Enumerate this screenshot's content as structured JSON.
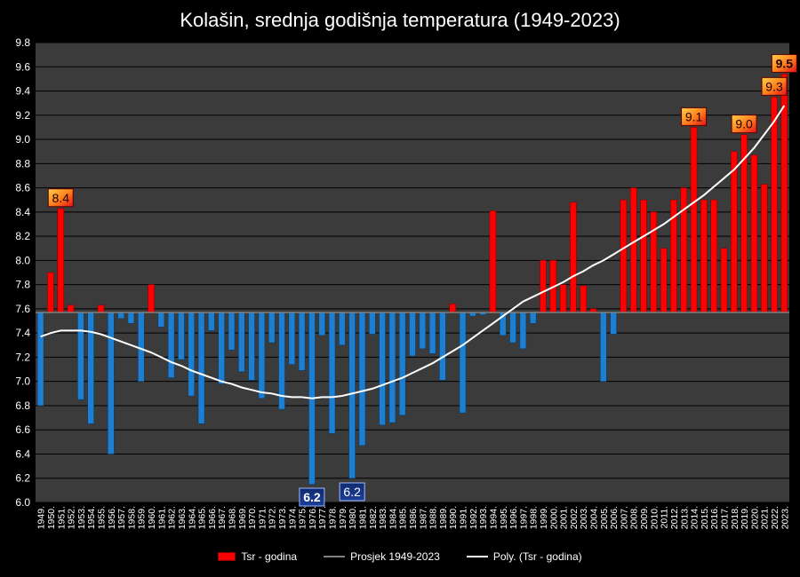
{
  "chart_data": {
    "type": "bar",
    "title": "Kolašin, srednja godišnja temperatura (1949-2023)",
    "baseline": 7.57,
    "ylim": [
      6.0,
      9.8
    ],
    "yticks": [
      "6.0",
      "6.2",
      "6.4",
      "6.6",
      "6.8",
      "7.0",
      "7.2",
      "7.4",
      "7.6",
      "7.8",
      "8.0",
      "8.2",
      "8.4",
      "8.6",
      "8.8",
      "9.0",
      "9.2",
      "9.4",
      "9.6",
      "9.8"
    ],
    "grid": true,
    "legend_position": "bottom",
    "colors": {
      "above": "#ff0000",
      "below": "#1e7fd0",
      "plot_bg": "#3b3b3b",
      "grid": "#000000",
      "trend": "#ffffff",
      "mean": "#808080"
    },
    "categories": [
      "1949.",
      "1950.",
      "1951.",
      "1952.",
      "1953.",
      "1954.",
      "1955.",
      "1956.",
      "1957.",
      "1958.",
      "1959.",
      "1960.",
      "1961.",
      "1962.",
      "1963.",
      "1964.",
      "1965.",
      "1966.",
      "1967.",
      "1968.",
      "1969.",
      "1970.",
      "1971.",
      "1972.",
      "1973.",
      "1974.",
      "1975.",
      "1976.",
      "1977.",
      "1978.",
      "1979.",
      "1980.",
      "1981.",
      "1982.",
      "1983.",
      "1984.",
      "1985.",
      "1986.",
      "1987.",
      "1988.",
      "1989.",
      "1990.",
      "1991.",
      "1992.",
      "1993.",
      "1994.",
      "1995.",
      "1996.",
      "1997.",
      "1998.",
      "1999.",
      "2000.",
      "2001.",
      "2002.",
      "2003.",
      "2004.",
      "2005.",
      "2006.",
      "2007.",
      "2008.",
      "2009.",
      "2010.",
      "2011.",
      "2012.",
      "2013.",
      "2014.",
      "2015.",
      "2016.",
      "2017.",
      "2018.",
      "2019.",
      "2020.",
      "2021.",
      "2022.",
      "2023."
    ],
    "series": [
      {
        "name": "Tsr - godina",
        "values": [
          6.8,
          7.9,
          8.43,
          7.63,
          6.85,
          6.65,
          7.63,
          6.4,
          7.52,
          7.48,
          7.0,
          7.8,
          7.45,
          7.03,
          7.18,
          6.88,
          6.65,
          7.42,
          6.98,
          7.26,
          7.08,
          7.01,
          6.86,
          7.32,
          6.77,
          7.14,
          7.09,
          6.15,
          7.38,
          6.57,
          7.3,
          6.2,
          6.47,
          7.39,
          6.64,
          6.66,
          6.72,
          7.21,
          7.27,
          7.23,
          7.01,
          7.64,
          6.74,
          7.54,
          7.55,
          8.41,
          7.38,
          7.32,
          7.27,
          7.48,
          8.0,
          8.0,
          7.8,
          8.48,
          7.79,
          7.6,
          7.0,
          7.39,
          8.5,
          8.6,
          8.5,
          8.4,
          8.1,
          8.5,
          8.6,
          9.1,
          8.5,
          8.5,
          8.1,
          8.9,
          9.04,
          8.87,
          8.63,
          9.35,
          9.54
        ]
      },
      {
        "name": "Prosjek 1949-2023"
      },
      {
        "name": "Poly. (Tsr - godina)"
      }
    ],
    "trend_values": [
      7.37,
      7.4,
      7.42,
      7.42,
      7.42,
      7.41,
      7.39,
      7.36,
      7.33,
      7.3,
      7.27,
      7.24,
      7.2,
      7.16,
      7.13,
      7.09,
      7.06,
      7.03,
      7.0,
      6.98,
      6.95,
      6.93,
      6.91,
      6.9,
      6.88,
      6.87,
      6.87,
      6.86,
      6.87,
      6.87,
      6.88,
      6.9,
      6.92,
      6.94,
      6.97,
      7.0,
      7.03,
      7.07,
      7.11,
      7.15,
      7.2,
      7.25,
      7.3,
      7.36,
      7.42,
      7.48,
      7.54,
      7.6,
      7.66,
      7.7,
      7.74,
      7.78,
      7.82,
      7.87,
      7.91,
      7.96,
      8.0,
      8.05,
      8.1,
      8.15,
      8.2,
      8.25,
      8.3,
      8.36,
      8.42,
      8.48,
      8.54,
      8.61,
      8.68,
      8.75,
      8.84,
      8.93,
      9.04,
      9.15,
      9.28
    ],
    "annotations": [
      {
        "index": 2,
        "text": "8.4",
        "style": "hot"
      },
      {
        "index": 27,
        "text": "6.2",
        "style": "cold"
      },
      {
        "index": 31,
        "text": "6.2",
        "style": "cold2"
      },
      {
        "index": 65,
        "text": "9.1",
        "style": "hot"
      },
      {
        "index": 70,
        "text": "9.0",
        "style": "hot"
      },
      {
        "index": 73,
        "text": "9.3",
        "style": "hot"
      },
      {
        "index": 74,
        "text": "9.5",
        "style": "hot"
      }
    ]
  }
}
